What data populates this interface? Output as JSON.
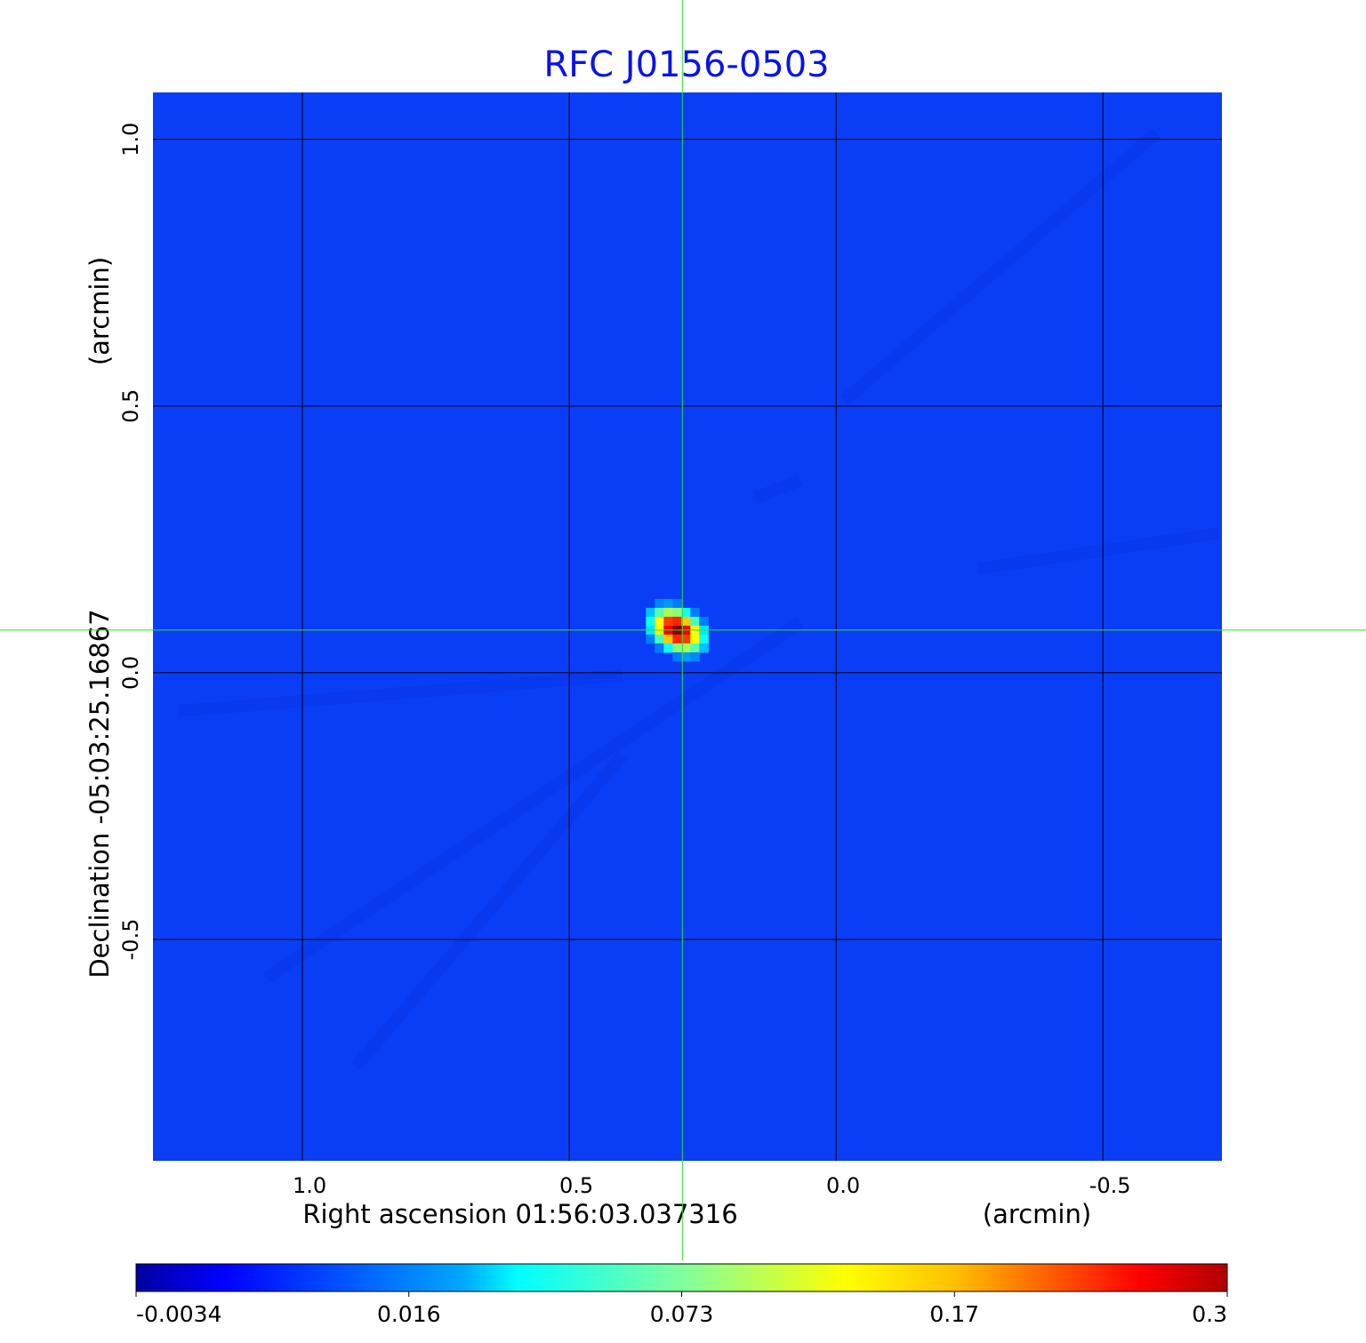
{
  "chart_data": {
    "type": "heatmap",
    "title": "RFC J0156-0503",
    "xlabel": "Right ascension  01:56:03.037316",
    "xunit": "(arcmin)",
    "ylabel": "Declination  -05:03:25.16867",
    "yunit": "(arcmin)",
    "xlim": [
      1.28,
      -0.723
    ],
    "ylim": [
      -0.915,
      1.088
    ],
    "xticks": [
      {
        "value": 1.0,
        "label": "1.0"
      },
      {
        "value": 0.5,
        "label": "0.5"
      },
      {
        "value": 0.0,
        "label": "0.0"
      },
      {
        "value": -0.5,
        "label": "-0.5"
      }
    ],
    "yticks": [
      {
        "value": 1.0,
        "label": "1.0"
      },
      {
        "value": 0.5,
        "label": "0.5"
      },
      {
        "value": 0.0,
        "label": "0.0"
      },
      {
        "value": -0.5,
        "label": "-0.5"
      }
    ],
    "grid": true,
    "crosshair": {
      "x": 0.288,
      "y": 0.08,
      "color": "#33dd33"
    },
    "colormap": "jet",
    "colorbar": {
      "placement": "bottom",
      "range": [
        -0.0034,
        0.3
      ],
      "ticks": [
        "-0.0034",
        "0.016",
        "0.073",
        "0.17",
        "0.3"
      ]
    },
    "source": {
      "x": 0.298,
      "y": 0.08,
      "peak": 0.3
    },
    "background_level": -0.0005
  },
  "colors": {
    "title": "#0a14e6",
    "grid": "#000000",
    "crosshair": "#33dd33"
  }
}
